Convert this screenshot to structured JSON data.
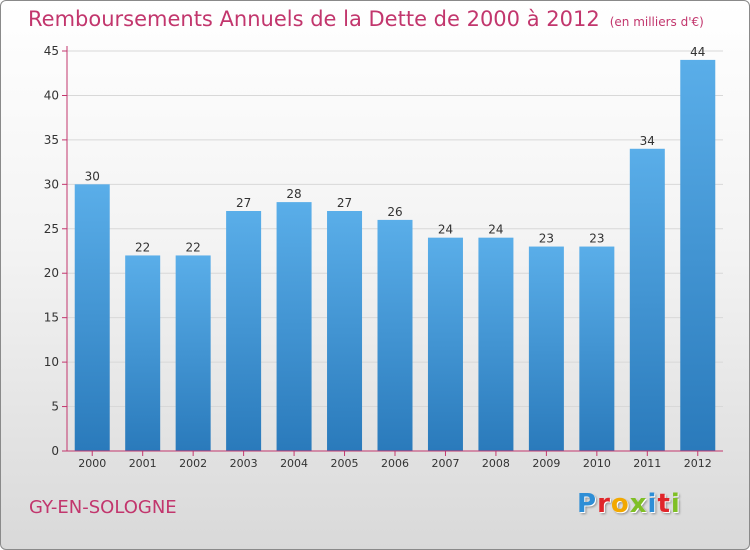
{
  "title": "Remboursements Annuels de la Dette de 2000 à 2012",
  "unit_label": "(en milliers d'€)",
  "place_name": "GY-EN-SOLOGNE",
  "logo": {
    "letters": [
      "P",
      "r",
      "o",
      "x",
      "i",
      "t",
      "i"
    ],
    "colors": [
      "#2e8ed6",
      "#e0262a",
      "#f2a800",
      "#7fbf25",
      "#2e8ed6",
      "#e0262a",
      "#7fbf25"
    ]
  },
  "colors": {
    "title": "#c2366d",
    "bar_top": "#5aaee9",
    "bar_bottom": "#2a7abb",
    "axis": "#c2366d",
    "grid": "#d8d8d8"
  },
  "chart_data": {
    "type": "bar",
    "title": "Remboursements Annuels de la Dette de 2000 à 2012",
    "subtitle": "(en milliers d'€)",
    "categories": [
      "2000",
      "2001",
      "2002",
      "2003",
      "2004",
      "2005",
      "2006",
      "2007",
      "2008",
      "2009",
      "2010",
      "2011",
      "2012"
    ],
    "values": [
      30,
      22,
      22,
      27,
      28,
      27,
      26,
      24,
      24,
      23,
      23,
      34,
      44
    ],
    "data_labels": [
      "30",
      "22",
      "22",
      "27",
      "28",
      "27",
      "26",
      "24",
      "24",
      "23",
      "23",
      "34",
      "44"
    ],
    "ylim": [
      0,
      45
    ],
    "yticks": [
      0,
      5,
      10,
      15,
      20,
      25,
      30,
      35,
      40,
      45
    ],
    "grid": true,
    "xlabel": "",
    "ylabel": ""
  }
}
